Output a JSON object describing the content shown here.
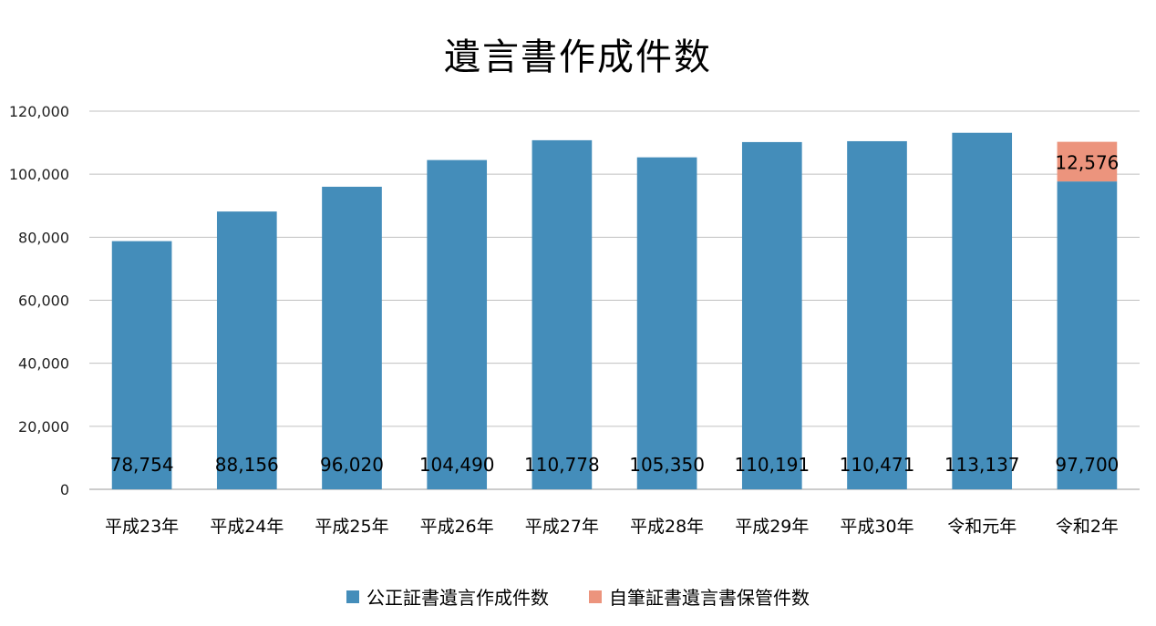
{
  "chart_data": {
    "type": "bar",
    "stacked": true,
    "title": "遺言書作成件数",
    "categories": [
      "平成23年",
      "平成24年",
      "平成25年",
      "平成26年",
      "平成27年",
      "平成28年",
      "平成29年",
      "平成30年",
      "令和元年",
      "令和2年"
    ],
    "series": [
      {
        "name": "公正証書遺言作成件数",
        "color": "#448dba",
        "values": [
          78754,
          88156,
          96020,
          104490,
          110778,
          105350,
          110191,
          110471,
          113137,
          97700
        ],
        "labels": [
          "78,754",
          "88,156",
          "96,020",
          "104,490",
          "110,778",
          "105,350",
          "110,191",
          "110,471",
          "113,137",
          "97,700"
        ]
      },
      {
        "name": "自筆証書遺言書保管件数",
        "color": "#ec947d",
        "values": [
          null,
          null,
          null,
          null,
          null,
          null,
          null,
          null,
          null,
          12576
        ],
        "labels": [
          "",
          "",
          "",
          "",
          "",
          "",
          "",
          "",
          "",
          "12,576"
        ]
      }
    ],
    "ylim": [
      0,
      120000
    ],
    "yticks": [
      "0",
      "20,000",
      "40,000",
      "60,000",
      "80,000",
      "100,000",
      "120,000"
    ],
    "ytick_values": [
      0,
      20000,
      40000,
      60000,
      80000,
      100000,
      120000
    ],
    "grid": true,
    "legend_position": "bottom"
  }
}
